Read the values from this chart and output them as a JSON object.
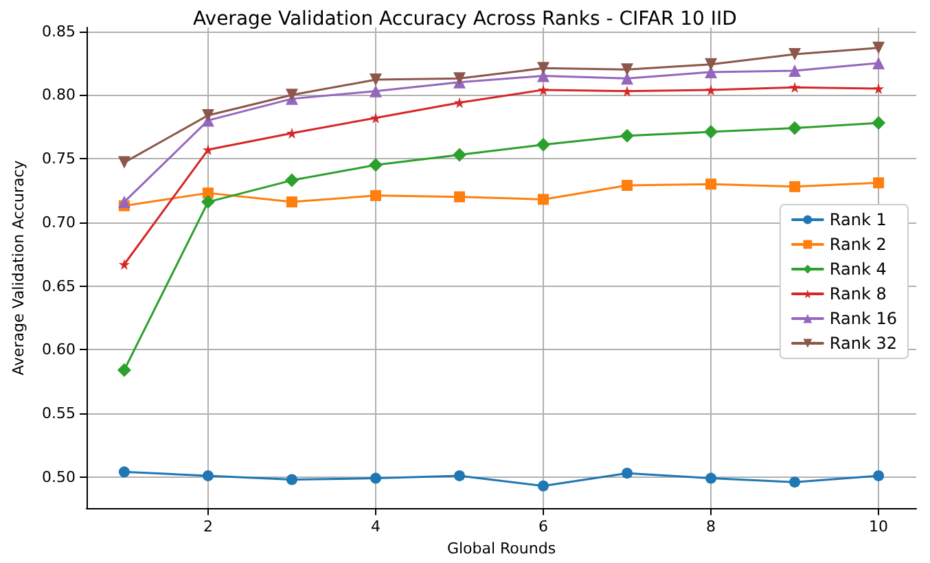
{
  "chart_data": {
    "type": "line",
    "title": "Average Validation Accuracy Across Ranks - CIFAR 10 IID",
    "xlabel": "Global Rounds",
    "ylabel": "Average Validation Accuracy",
    "x": [
      1,
      2,
      3,
      4,
      5,
      6,
      7,
      8,
      9,
      10
    ],
    "series": [
      {
        "name": "Rank 1",
        "color": "#1f77b4",
        "marker": "circle",
        "values": [
          0.504,
          0.501,
          0.498,
          0.499,
          0.501,
          0.493,
          0.503,
          0.499,
          0.496,
          0.501
        ]
      },
      {
        "name": "Rank 2",
        "color": "#ff7f0e",
        "marker": "square",
        "values": [
          0.713,
          0.723,
          0.716,
          0.721,
          0.72,
          0.718,
          0.729,
          0.73,
          0.728,
          0.731
        ]
      },
      {
        "name": "Rank 4",
        "color": "#2ca02c",
        "marker": "diamond",
        "values": [
          0.584,
          0.716,
          0.733,
          0.745,
          0.753,
          0.761,
          0.768,
          0.771,
          0.774,
          0.778
        ]
      },
      {
        "name": "Rank 8",
        "color": "#d62728",
        "marker": "star",
        "values": [
          0.667,
          0.757,
          0.77,
          0.782,
          0.794,
          0.804,
          0.803,
          0.804,
          0.806,
          0.805
        ]
      },
      {
        "name": "Rank 16",
        "color": "#9467bd",
        "marker": "triangle",
        "values": [
          0.716,
          0.78,
          0.797,
          0.803,
          0.81,
          0.815,
          0.813,
          0.818,
          0.819,
          0.825
        ]
      },
      {
        "name": "Rank 32",
        "color": "#8c564b",
        "marker": "triangle-down",
        "values": [
          0.747,
          0.784,
          0.8,
          0.812,
          0.813,
          0.821,
          0.82,
          0.824,
          0.832,
          0.837
        ]
      }
    ],
    "xlim": [
      0.55,
      10.45
    ],
    "xticks": [
      2,
      4,
      6,
      8,
      10
    ],
    "ylim": [
      0.4755,
      0.853
    ],
    "yticks": [
      {
        "value": 0.5,
        "label": "0.50"
      },
      {
        "value": 0.55,
        "label": "0.55"
      },
      {
        "value": 0.6,
        "label": "0.60"
      },
      {
        "value": 0.65,
        "label": "0.65"
      },
      {
        "value": 0.7,
        "label": "0.70"
      },
      {
        "value": 0.75,
        "label": "0.75"
      },
      {
        "value": 0.8,
        "label": "0.80"
      },
      {
        "value": 0.85,
        "label": "0.85"
      }
    ],
    "grid": true,
    "legend": "right",
    "line_style": "solid"
  }
}
